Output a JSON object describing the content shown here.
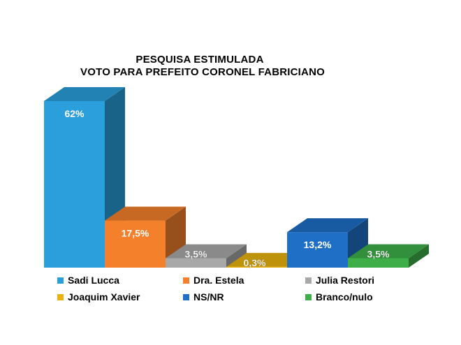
{
  "colors": {
    "sadi": "#2A9FDB",
    "estela": "#F4802B",
    "julia": "#A8A8A8",
    "joaquim": "#E9B20E",
    "nsnr": "#1F6FC7",
    "branco": "#3DAE48"
  },
  "chart_data": {
    "type": "bar",
    "title": "PESQUISA ESTIMULADA",
    "subtitle": "VOTO PARA PREFEITO CORONEL FABRICIANO",
    "categories": [
      "Sadi Lucca",
      "Dra. Estela",
      "Julia Restori",
      "Joaquim Xavier",
      "NS/NR",
      "Branco/nulo"
    ],
    "values": [
      62,
      17.5,
      3.5,
      0.3,
      13.2,
      3.5
    ],
    "value_labels": [
      "62%",
      "17,5%",
      "3,5%",
      "0,3%",
      "13,2%",
      "3,5%"
    ],
    "color_keys": [
      "sadi",
      "estela",
      "julia",
      "joaquim",
      "nsnr",
      "branco"
    ],
    "style": "3d",
    "legend_position": "bottom",
    "grid": false
  }
}
